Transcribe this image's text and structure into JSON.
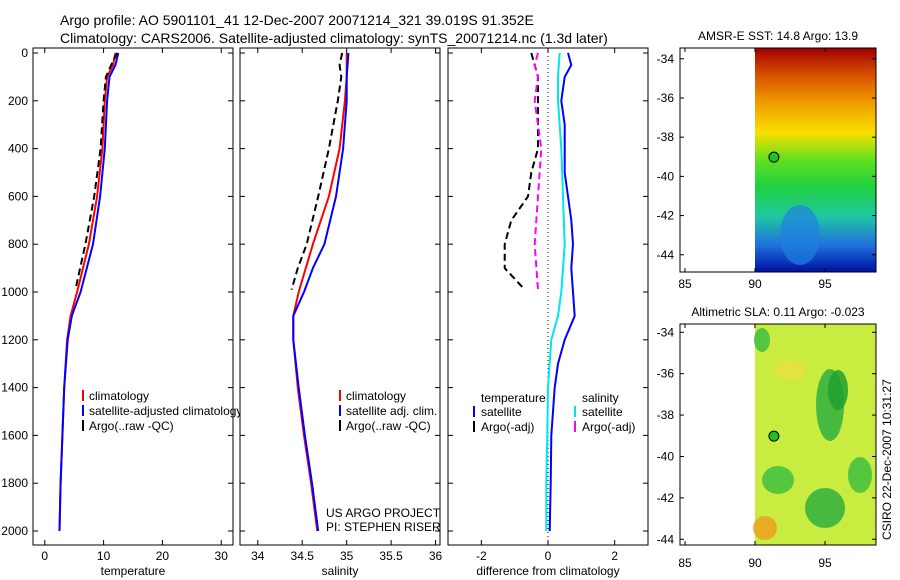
{
  "titles": {
    "line1": "Argo profile: AO 5901101_41 12-Dec-2007 20071214_321 39.019S 91.352E",
    "line2": "Climatology: CARS2006. Satellite-adjusted climatology: synTS_20071214.nc (1.3d later)"
  },
  "stamp": "CSIRO 22-Dec-2007 10:31:27",
  "colors": {
    "climatology": "#ff0000",
    "satellite": "#0000ff",
    "argo": "#000000",
    "sal_satellite": "#00e5ee",
    "sal_argo": "#ff00ff"
  },
  "chart_data": [
    {
      "type": "line",
      "id": "temp",
      "xlabel": "temperature",
      "ylabel": "",
      "xlim": [
        -2,
        32
      ],
      "ylim": [
        2000,
        0
      ],
      "xticks": [
        0,
        10,
        20,
        30
      ],
      "yticks": [
        0,
        200,
        400,
        600,
        800,
        1000,
        1200,
        1400,
        1600,
        1800,
        2000
      ],
      "legend": [
        "climatology",
        "satellite-adjusted climatology",
        "Argo(..raw -QC)"
      ],
      "legend_placement": "lower-right",
      "series": [
        {
          "name": "climatology",
          "color": "#ff0000",
          "dash": false,
          "depth": [
            0,
            50,
            100,
            200,
            400,
            600,
            800,
            1000,
            1100,
            1200,
            1400,
            1600,
            1800,
            2000
          ],
          "values": [
            12,
            11.6,
            10.6,
            10.2,
            9.8,
            8.9,
            7.5,
            5.5,
            4.4,
            3.8,
            3.3,
            3,
            2.7,
            2.5
          ]
        },
        {
          "name": "satellite-adjusted climatology",
          "color": "#0000ff",
          "dash": false,
          "depth": [
            0,
            50,
            100,
            200,
            400,
            600,
            800,
            1000,
            1100,
            1200,
            1400,
            1600,
            1800,
            2000
          ],
          "values": [
            12.5,
            12,
            11,
            10.6,
            10.2,
            9.4,
            8.2,
            6.1,
            4.6,
            3.9,
            3.3,
            3,
            2.7,
            2.5
          ]
        },
        {
          "name": "Argo(..raw -QC)",
          "color": "#000000",
          "dash": true,
          "depth": [
            0,
            50,
            100,
            200,
            400,
            600,
            800,
            990
          ],
          "values": [
            12.3,
            11.3,
            10.4,
            10,
            9.5,
            8.4,
            6.9,
            5.2
          ]
        }
      ]
    },
    {
      "type": "line",
      "id": "sal",
      "xlabel": "salinity",
      "xlim": [
        33.8,
        36.05
      ],
      "ylim": [
        2000,
        0
      ],
      "xticks": [
        34,
        34.5,
        35,
        35.5,
        36
      ],
      "yticks": [
        0,
        200,
        400,
        600,
        800,
        1000,
        1200,
        1400,
        1600,
        1800,
        2000
      ],
      "legend": [
        "climatology",
        "satellite adj. clim.",
        "Argo(..raw -QC)"
      ],
      "legend_placement": "lower-right",
      "annotation": [
        "US ARGO PROJECT",
        "PI: STEPHEN RISER"
      ],
      "series": [
        {
          "name": "climatology",
          "color": "#ff0000",
          "dash": false,
          "depth": [
            0,
            100,
            200,
            400,
            600,
            800,
            1000,
            1100,
            1200,
            1400,
            1600,
            1800,
            2000
          ],
          "values": [
            35,
            35,
            34.98,
            34.92,
            34.8,
            34.62,
            34.46,
            34.4,
            34.4,
            34.45,
            34.52,
            34.6,
            34.67
          ]
        },
        {
          "name": "satellite adj. clim.",
          "color": "#0000ff",
          "dash": false,
          "depth": [
            0,
            100,
            200,
            400,
            600,
            800,
            900,
            1000,
            1100,
            1200,
            1400,
            1600,
            1800,
            2000
          ],
          "values": [
            35.02,
            35,
            35,
            34.96,
            34.88,
            34.75,
            34.62,
            34.52,
            34.4,
            34.4,
            34.46,
            34.53,
            34.61,
            34.68
          ]
        },
        {
          "name": "Argo(..raw -QC)",
          "color": "#000000",
          "dash": true,
          "depth": [
            0,
            50,
            100,
            200,
            400,
            600,
            800,
            900,
            990
          ],
          "values": [
            34.95,
            34.92,
            34.94,
            34.9,
            34.8,
            34.68,
            34.55,
            34.45,
            34.38
          ]
        }
      ]
    },
    {
      "type": "line",
      "id": "diff",
      "xlabel": "difference from climatology",
      "xlim": [
        -3,
        3
      ],
      "ylim": [
        2000,
        0
      ],
      "xticks": [
        -2,
        0,
        2
      ],
      "yticks": [
        0,
        200,
        400,
        600,
        800,
        1000,
        1200,
        1400,
        1600,
        1800,
        2000
      ],
      "legend_headers": [
        "temperature",
        "salinity"
      ],
      "legend": [
        "satellite",
        "Argo(-adj)",
        "satellite",
        "Argo(-adj)"
      ],
      "legend_placement": "lower-center",
      "series": [
        {
          "name": "temperature satellite",
          "color": "#0000ff",
          "dash": false,
          "depth": [
            0,
            50,
            100,
            200,
            300,
            400,
            500,
            600,
            700,
            800,
            900,
            1000,
            1100,
            1200,
            1300,
            1400,
            1600,
            1800,
            2000
          ],
          "values": [
            0.6,
            0.7,
            0.5,
            0.4,
            0.5,
            0.5,
            0.5,
            0.6,
            0.7,
            0.75,
            0.7,
            0.75,
            0.8,
            0.5,
            0.3,
            0.2,
            0.1,
            0.08,
            0.05
          ]
        },
        {
          "name": "salinity satellite",
          "color": "#00e5ee",
          "dash": false,
          "depth": [
            0,
            100,
            200,
            400,
            600,
            800,
            1000,
            1100,
            1200,
            1400,
            1600,
            1800,
            2000
          ],
          "values": [
            0.35,
            0.3,
            0.3,
            0.4,
            0.45,
            0.5,
            0.4,
            0.3,
            0.1,
            0,
            -0.02,
            -0.05,
            -0.05
          ]
        },
        {
          "name": "temperature Argo(-adj)",
          "color": "#000000",
          "dash": true,
          "depth": [
            0,
            50,
            100,
            200,
            400,
            500,
            600,
            700,
            800,
            900,
            990
          ],
          "values": [
            -0.5,
            -0.4,
            -0.3,
            -0.3,
            -0.3,
            -0.5,
            -0.6,
            -1.1,
            -1.3,
            -1.3,
            -0.7
          ]
        },
        {
          "name": "salinity Argo(-adj)",
          "color": "#ff00ff",
          "dash": true,
          "depth": [
            0,
            50,
            100,
            200,
            400,
            600,
            800,
            990
          ],
          "values": [
            -0.3,
            -0.4,
            -0.3,
            -0.4,
            -0.2,
            -0.3,
            -0.4,
            -0.3
          ]
        }
      ]
    }
  ],
  "maps": [
    {
      "title": "AMSR-E SST: 14.8 Argo: 13.9",
      "xticks": [
        85,
        90,
        95
      ],
      "yticks": [
        -34,
        -36,
        -38,
        -40,
        -42,
        -44
      ],
      "marker": {
        "lon": 91.352,
        "lat": -39.019
      }
    },
    {
      "title": "Altimetric SLA: 0.11 Argo: -0.023",
      "xticks": [
        85,
        90,
        95
      ],
      "yticks": [
        -34,
        -36,
        -38,
        -40,
        -42,
        -44
      ],
      "marker": {
        "lon": 91.352,
        "lat": -39.019
      }
    }
  ]
}
